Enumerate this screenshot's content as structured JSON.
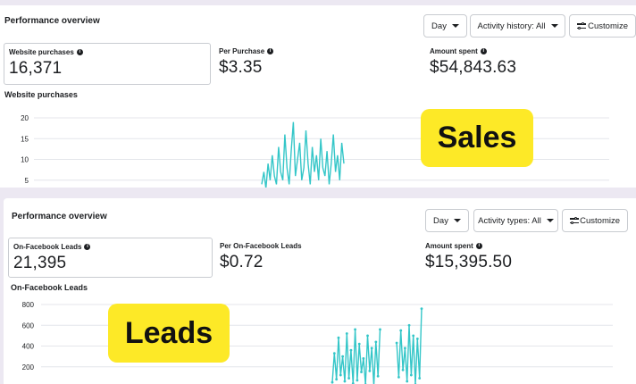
{
  "sales": {
    "title": "Performance overview",
    "buttons": {
      "day": "Day",
      "activity": "Activity history: All",
      "customize": "Customize"
    },
    "metrics": [
      {
        "label": "Website purchases",
        "value": "16,371"
      },
      {
        "label": "Per Purchase",
        "value": "$3.35"
      },
      {
        "label": "Amount spent",
        "value": "$54,843.63"
      }
    ],
    "chart_label": "Website purchases",
    "chart_data": {
      "type": "line",
      "ylim": [
        0,
        20
      ],
      "y_ticks": [
        "20",
        "15",
        "10",
        "5"
      ],
      "series": [
        {
          "values": [
            4,
            7,
            3,
            9,
            5,
            11,
            6,
            4,
            13,
            7,
            5,
            16,
            8,
            4,
            12,
            19,
            6,
            10,
            14,
            5,
            8,
            17,
            9,
            4,
            13,
            7,
            11,
            5,
            15,
            8,
            6,
            12,
            4,
            9,
            16,
            7,
            11,
            5,
            14,
            9
          ]
        }
      ]
    },
    "overlay_label": "Sales"
  },
  "leads": {
    "title": "Performance overview",
    "buttons": {
      "day": "Day",
      "activity": "Activity types: All",
      "customize": "Customize"
    },
    "metrics": [
      {
        "label": "On-Facebook Leads",
        "value": "21,395"
      },
      {
        "label": "Per On-Facebook Leads",
        "value": "$0.72"
      },
      {
        "label": "Amount spent",
        "value": "$15,395.50"
      }
    ],
    "chart_label": "On-Facebook Leads",
    "chart_data": {
      "type": "line",
      "ylim": [
        0,
        800
      ],
      "y_ticks": [
        "800",
        "600",
        "400",
        "200"
      ],
      "series": [
        {
          "values": [
            50,
            330,
            80,
            480,
            120,
            300,
            60,
            520,
            90,
            360,
            40,
            560,
            70,
            420,
            150,
            280,
            30,
            500,
            160,
            380,
            20,
            440,
            110,
            560,
            0,
            0,
            0,
            0,
            0,
            0,
            0,
            430,
            100,
            550,
            170,
            380,
            60,
            600,
            120,
            500,
            30,
            470,
            90,
            760
          ]
        }
      ]
    },
    "overlay_label": "Leads"
  }
}
